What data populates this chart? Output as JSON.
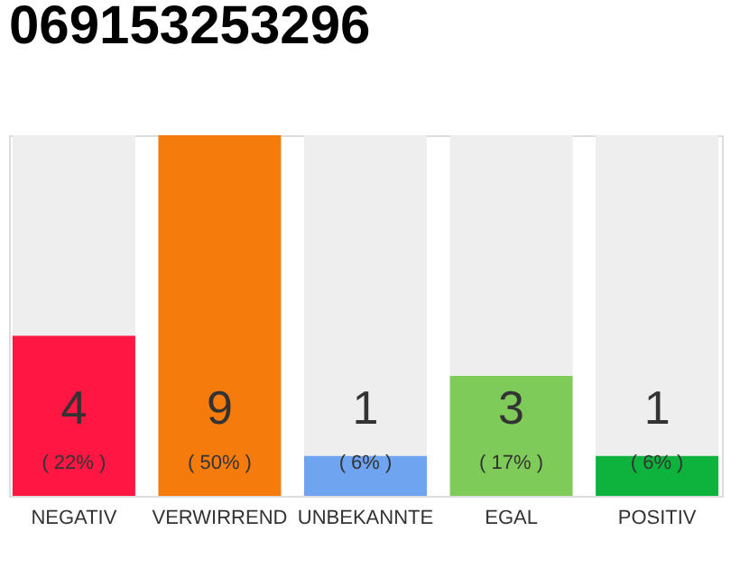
{
  "chart_data": {
    "type": "bar",
    "title": "069153253296",
    "stacked": true,
    "categories": [
      "NEGATIV",
      "VERWIRREND",
      "UNBEKANNTE",
      "EGAL",
      "POSITIV"
    ],
    "series": [
      {
        "colors": [
          "#ff1744",
          "#f57c0c",
          "#6fa4f0",
          "#7ecb5a",
          "#0db33d"
        ],
        "values": [
          4,
          9,
          1,
          3,
          1
        ],
        "value_labels": [
          "4",
          "9",
          "1",
          "3",
          "1"
        ]
      },
      {
        "color": "#eeeeee",
        "values": [
          5,
          0,
          8,
          6,
          8
        ]
      }
    ],
    "annotations": [
      "( 22% )",
      "( 50% )",
      "( 6% )",
      "( 17% )",
      "( 6% )"
    ],
    "grid": false
  }
}
